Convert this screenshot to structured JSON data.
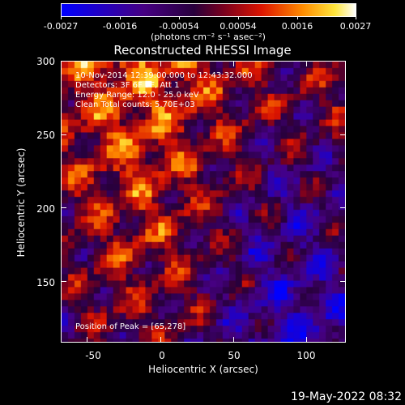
{
  "colorbar": {
    "ticks": [
      "-0.0027",
      "-0.0016",
      "-0.00054",
      "0.00054",
      "0.0016",
      "0.0027"
    ],
    "units": "(photons cm⁻² s⁻¹ asec⁻²)"
  },
  "chart_data": {
    "type": "heatmap",
    "title": "Reconstructed RHESSI Image",
    "xlabel": "Heliocentric X (arcsec)",
    "ylabel": "Heliocentric Y (arcsec)",
    "xlim": [
      -68,
      127
    ],
    "ylim": [
      108,
      300
    ],
    "x_ticks": [
      "-50",
      "0",
      "50",
      "100"
    ],
    "y_ticks": [
      "150",
      "200",
      "250",
      "300"
    ],
    "x_tick_values": [
      -50,
      0,
      50,
      100
    ],
    "y_tick_values": [
      150,
      200,
      250,
      300
    ],
    "colorbar_range": [
      -0.0027,
      0.0027
    ],
    "annotations": {
      "time": "10-Nov-2014 12:39:00.000 to 12:43:32.000",
      "detectors": "Detectors: 3F 6F 9F, Att 1",
      "energy": "Energy Range: 12.0 - 25.0 keV",
      "clean": "Clean    Total counts: 5.70E+03",
      "peak": "Position of Peak = [65,278]"
    }
  },
  "footer": {
    "timestamp": "19-May-2022 08:32"
  }
}
